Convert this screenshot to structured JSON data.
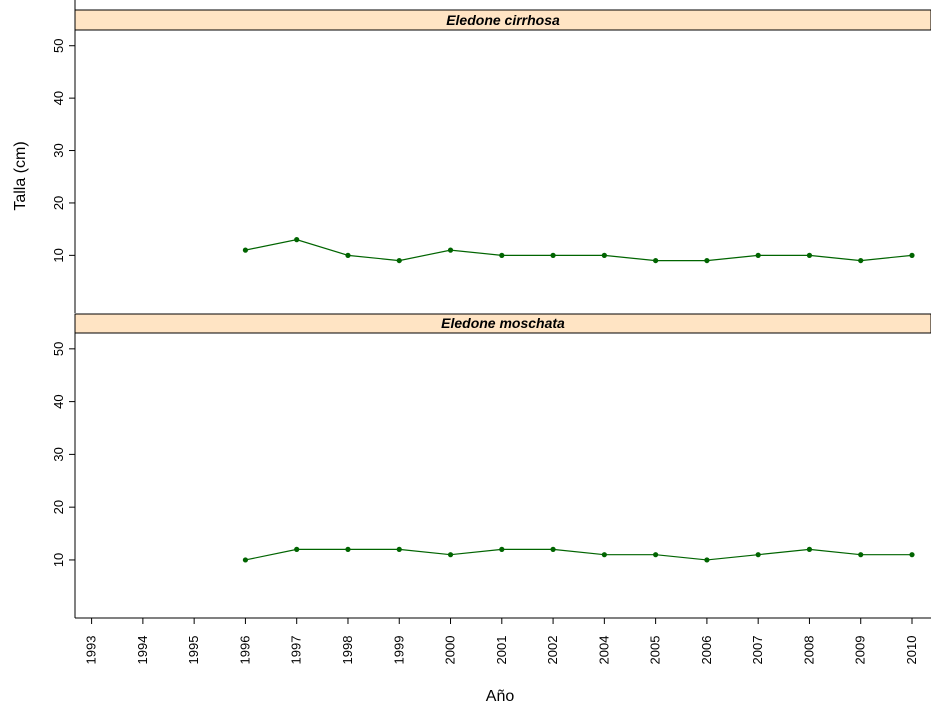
{
  "chart_data": {
    "type": "line",
    "xlabel": "Año",
    "ylabel": "Talla (cm)",
    "x": [
      "1993",
      "1994",
      "1995",
      "1996",
      "1997",
      "1998",
      "1999",
      "2000",
      "2001",
      "2002",
      "2004",
      "2005",
      "2006",
      "2007",
      "2008",
      "2009",
      "2010"
    ],
    "yticks": [
      10,
      20,
      30,
      40,
      50
    ],
    "ylim": [
      -1,
      53
    ],
    "grid": false,
    "colors": {
      "line": "#006400",
      "marker": "#006400",
      "strip": "#ffe4c4",
      "axis": "#000000"
    },
    "panels": [
      {
        "strip_label": "Eledone cirrhosa",
        "series": [
          {
            "x": [
              "1996",
              "1997",
              "1998",
              "1999",
              "2000",
              "2001",
              "2002",
              "2004",
              "2005",
              "2006",
              "2007",
              "2008",
              "2009",
              "2010"
            ],
            "values": [
              11,
              13,
              10,
              9,
              11,
              10,
              10,
              10,
              9,
              9,
              10,
              10,
              9,
              10
            ]
          }
        ]
      },
      {
        "strip_label": "Eledone moschata",
        "series": [
          {
            "x": [
              "1996",
              "1997",
              "1998",
              "1999",
              "2000",
              "2001",
              "2002",
              "2004",
              "2005",
              "2006",
              "2007",
              "2008",
              "2009",
              "2010"
            ],
            "values": [
              10,
              12,
              12,
              12,
              11,
              12,
              12,
              11,
              11,
              10,
              11,
              12,
              11,
              11
            ]
          }
        ]
      }
    ]
  }
}
